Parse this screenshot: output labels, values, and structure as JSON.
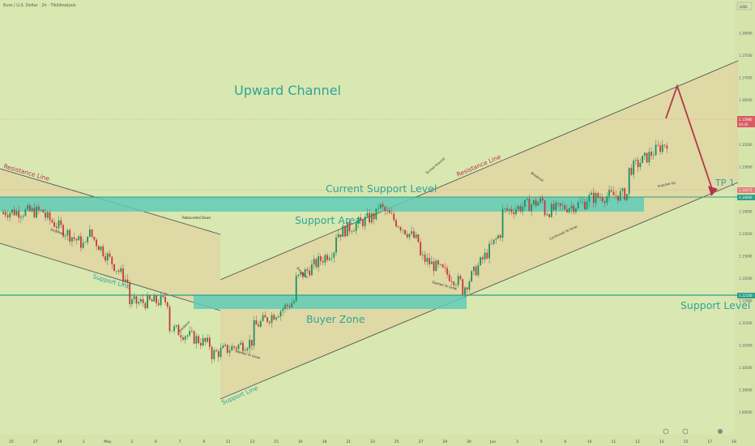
{
  "header": {
    "symbol_text": "Euro / U.S. Dollar · 2h · TikitAnalysis"
  },
  "currency_badge": "USD",
  "price_badges": {
    "current_price": "1.15980",
    "current_time": "44:42",
    "dashed_level": "1.14375",
    "support_area": "1.14000",
    "support_level": "1.12100"
  },
  "annotations": {
    "title": "Upward Channel",
    "current_support": "Current Support Level",
    "support_area": "Support Area",
    "buyer_zone": "Buyer Zone",
    "support_level": "Support Level",
    "tp": "TP 1",
    "resistance_left": "Resistance Line",
    "resistance_right": "Resistance Line",
    "support_line_left": "Support Line",
    "support_line_bottom": "Support Line",
    "small": [
      {
        "t": "Rebounded Down"
      },
      {
        "t": "Declined"
      },
      {
        "t": "Breakout"
      },
      {
        "t": "Started To Grow"
      },
      {
        "t": "Breakout"
      },
      {
        "t": "Turned Around"
      },
      {
        "t": "Started To Grow"
      },
      {
        "t": "Breakout"
      },
      {
        "t": "Continued To Grow"
      },
      {
        "t": "Impulse Up"
      }
    ]
  },
  "chart_data": {
    "type": "candlestick",
    "ylim": [
      1.09,
      1.1875
    ],
    "y_ticks": [
      "1.18000",
      "1.17500",
      "1.17000",
      "1.16500",
      "1.16000",
      "1.15500",
      "1.15000",
      "1.14500",
      "1.14000",
      "1.13500",
      "1.13000",
      "1.12500",
      "1.12000",
      "1.11500",
      "1.11000",
      "1.10500",
      "1.10000",
      "1.09500"
    ],
    "x_ticks": [
      "25",
      "27",
      "29",
      "1",
      "May",
      "2",
      "6",
      "7",
      "9",
      "11",
      "13",
      "15",
      "16",
      "18",
      "21",
      "23",
      "25",
      "27",
      "29",
      "30",
      "Jun",
      "3",
      "5",
      "6",
      "10",
      "11",
      "12",
      "13",
      "15",
      "17",
      "18"
    ],
    "levels": {
      "support_area": [
        1.1395,
        1.1425
      ],
      "support_level": 1.121,
      "buyer_zone": [
        1.1183,
        1.121
      ],
      "current_price": 1.1598,
      "dashed_level": 1.1437
    },
    "key_path": [
      {
        "x": "Apr 22",
        "o": 1.1395,
        "c": 1.14
      },
      {
        "x": "Apr 29",
        "o": 1.14,
        "c": 1.139
      },
      {
        "x": "May 6",
        "o": 1.132,
        "c": 1.136
      },
      {
        "x": "May 9",
        "o": 1.124,
        "c": 1.1195
      },
      {
        "x": "May 11",
        "o": 1.12,
        "c": 1.114
      },
      {
        "x": "May 12",
        "o": 1.11,
        "c": 1.108
      },
      {
        "x": "May 14",
        "o": 1.111,
        "c": 1.114
      },
      {
        "x": "May 19",
        "o": 1.12,
        "c": 1.1245
      },
      {
        "x": "May 22",
        "o": 1.132,
        "c": 1.135
      },
      {
        "x": "May 26",
        "o": 1.1395,
        "c": 1.1415
      },
      {
        "x": "May 28",
        "o": 1.133,
        "c": 1.13
      },
      {
        "x": "May 29",
        "o": 1.124,
        "c": 1.122
      },
      {
        "x": "Jun 3",
        "o": 1.136,
        "c": 1.14
      },
      {
        "x": "Jun 6",
        "o": 1.1425,
        "c": 1.14
      },
      {
        "x": "Jun 10",
        "o": 1.142,
        "c": 1.143
      },
      {
        "x": "Jun 11",
        "o": 1.144,
        "c": 1.149
      },
      {
        "x": "Jun 12",
        "o": 1.156,
        "c": 1.1598
      }
    ],
    "projection": [
      {
        "x": "Jun 12",
        "y": 1.1598
      },
      {
        "x": "Jun 13",
        "y": 1.1653
      },
      {
        "x": "Jun 17",
        "y": 1.1433
      }
    ],
    "grid": false
  }
}
